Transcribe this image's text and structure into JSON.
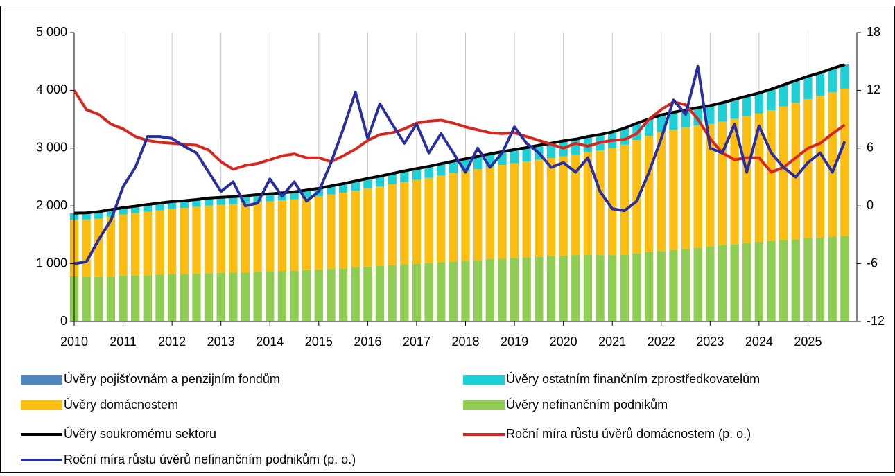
{
  "chart_data": {
    "type": "combo",
    "x": [
      2010,
      2010.25,
      2010.5,
      2010.75,
      2011,
      2011.25,
      2011.5,
      2011.75,
      2012,
      2012.25,
      2012.5,
      2012.75,
      2013,
      2013.25,
      2013.5,
      2013.75,
      2014,
      2014.25,
      2014.5,
      2014.75,
      2015,
      2015.25,
      2015.5,
      2015.75,
      2016,
      2016.25,
      2016.5,
      2016.75,
      2017,
      2017.25,
      2017.5,
      2017.75,
      2018,
      2018.25,
      2018.5,
      2018.75,
      2019,
      2019.25,
      2019.5,
      2019.75,
      2020,
      2020.25,
      2020.5,
      2020.75,
      2021,
      2021.25,
      2021.5,
      2021.75,
      2022,
      2022.25,
      2022.5,
      2022.75,
      2023,
      2023.25,
      2023.5,
      2023.75,
      2024,
      2024.25,
      2024.5,
      2024.75,
      2025,
      2025.25,
      2025.5,
      2025.75
    ],
    "xlim": [
      2010,
      2026
    ],
    "xticks": [
      2010,
      2011,
      2012,
      2013,
      2014,
      2015,
      2016,
      2017,
      2018,
      2019,
      2020,
      2021,
      2022,
      2023,
      2024,
      2025
    ],
    "ylim": [
      0,
      5000
    ],
    "yticks": [
      0,
      {
        "value": 1000,
        "label": "1 000"
      },
      {
        "value": 2000,
        "label": "2 000"
      },
      {
        "value": 3000,
        "label": "3 000"
      },
      {
        "value": 4000,
        "label": "4 000"
      },
      {
        "value": 5000,
        "label": "5 000"
      }
    ],
    "y2lim": [
      -12,
      18
    ],
    "y2ticks": [
      -12,
      -6,
      0,
      6,
      12,
      18
    ],
    "grid": true,
    "series": [
      {
        "name": "Úvěry pojišťovnám a penzijním fondům",
        "type": "bar",
        "color": "#4f86c0",
        "values": [
          15,
          15,
          15,
          15,
          15,
          15,
          15,
          15,
          15,
          15,
          15,
          15,
          15,
          15,
          15,
          15,
          15,
          15,
          15,
          15,
          15,
          15,
          15,
          15,
          15,
          15,
          15,
          15,
          15,
          15,
          15,
          15,
          15,
          15,
          15,
          15,
          15,
          15,
          15,
          15,
          15,
          15,
          15,
          15,
          15,
          15,
          15,
          15,
          15,
          15,
          15,
          15,
          15,
          15,
          15,
          15,
          15,
          15,
          15,
          15,
          15,
          15,
          15,
          15
        ]
      },
      {
        "name": "Úvěry ostatním finančním zprostředkovatelům",
        "type": "bar",
        "color": "#1fcfd6",
        "values": [
          100,
          100,
          105,
          105,
          105,
          105,
          110,
          110,
          110,
          110,
          110,
          115,
          115,
          115,
          115,
          115,
          115,
          115,
          115,
          120,
          120,
          130,
          140,
          150,
          160,
          165,
          170,
          175,
          180,
          185,
          190,
          195,
          200,
          205,
          210,
          215,
          220,
          225,
          235,
          240,
          250,
          250,
          255,
          260,
          265,
          270,
          275,
          280,
          280,
          285,
          290,
          295,
          300,
          310,
          320,
          330,
          340,
          350,
          360,
          370,
          380,
          385,
          395,
          400
        ]
      },
      {
        "name": "Úvěry domácnostem",
        "type": "bar",
        "color": "#fbbd0f",
        "values": [
          980,
          990,
          1010,
          1040,
          1060,
          1080,
          1100,
          1115,
          1130,
          1140,
          1155,
          1170,
          1180,
          1185,
          1195,
          1205,
          1210,
          1220,
          1235,
          1250,
          1270,
          1290,
          1310,
          1330,
          1350,
          1375,
          1400,
          1425,
          1450,
          1475,
          1500,
          1525,
          1550,
          1570,
          1595,
          1620,
          1640,
          1660,
          1680,
          1700,
          1720,
          1740,
          1770,
          1810,
          1850,
          1900,
          1960,
          2010,
          2060,
          2080,
          2095,
          2110,
          2120,
          2140,
          2170,
          2195,
          2220,
          2260,
          2310,
          2360,
          2410,
          2450,
          2500,
          2550
        ]
      },
      {
        "name": "Úvěry nefinančním podnikům",
        "type": "bar",
        "color": "#8fce52",
        "values": [
          780,
          775,
          770,
          775,
          790,
          795,
          800,
          810,
          820,
          825,
          830,
          835,
          840,
          845,
          850,
          860,
          870,
          875,
          880,
          890,
          900,
          910,
          920,
          935,
          950,
          960,
          975,
          990,
          1000,
          1010,
          1025,
          1040,
          1050,
          1065,
          1080,
          1090,
          1100,
          1110,
          1120,
          1130,
          1140,
          1150,
          1160,
          1150,
          1150,
          1160,
          1180,
          1200,
          1220,
          1240,
          1260,
          1280,
          1300,
          1320,
          1340,
          1360,
          1380,
          1395,
          1410,
          1425,
          1440,
          1455,
          1470,
          1480
        ]
      },
      {
        "name": "Úvěry soukromému sektoru",
        "type": "line",
        "color": "#000000",
        "values": [
          1875,
          1880,
          1900,
          1935,
          1970,
          1995,
          2025,
          2050,
          2075,
          2090,
          2110,
          2135,
          2150,
          2160,
          2175,
          2195,
          2210,
          2225,
          2245,
          2275,
          2305,
          2345,
          2385,
          2430,
          2475,
          2515,
          2560,
          2605,
          2645,
          2685,
          2730,
          2775,
          2815,
          2855,
          2900,
          2940,
          2975,
          3010,
          3050,
          3085,
          3125,
          3155,
          3200,
          3235,
          3280,
          3345,
          3430,
          3505,
          3575,
          3620,
          3660,
          3700,
          3735,
          3785,
          3845,
          3900,
          3955,
          4020,
          4095,
          4170,
          4245,
          4305,
          4380,
          4445
        ]
      },
      {
        "name": "Roční míra růstu úvěrů domácnostem (p. o.)",
        "type": "line",
        "axis": "y2",
        "color": "#d9261c",
        "values": [
          12,
          10,
          9.5,
          8.5,
          8,
          7.2,
          6.8,
          6.6,
          6.5,
          6.4,
          6.3,
          5.8,
          4.6,
          3.8,
          4.2,
          4.4,
          4.8,
          5.2,
          5.4,
          5,
          5,
          4.6,
          5.2,
          5.9,
          6.8,
          7.4,
          7.6,
          8,
          8.6,
          8.8,
          8.9,
          8.6,
          8.2,
          7.9,
          7.6,
          7.5,
          7.6,
          7.2,
          6.8,
          6.4,
          6,
          6.5,
          6.2,
          6.6,
          6.8,
          6.9,
          7.5,
          9,
          10,
          10.8,
          10.5,
          9,
          7,
          5.5,
          4.8,
          5,
          5,
          3.5,
          4,
          5,
          6,
          6.5,
          7.5,
          8.4
        ]
      },
      {
        "name": "Roční míra růstu úvěrů nefinančním podnikům (p. o.)",
        "type": "line",
        "axis": "y2",
        "color": "#2a2fa0",
        "values": [
          -6,
          -5.8,
          -3.5,
          -1.5,
          2,
          4,
          7.2,
          7.2,
          7,
          6.2,
          5.5,
          3.5,
          1.5,
          2.5,
          0,
          0.3,
          2.8,
          1,
          2.5,
          0.5,
          1.5,
          4.5,
          8,
          11.8,
          7,
          10.6,
          8.5,
          6.5,
          8.5,
          5.5,
          7.5,
          5.5,
          3.5,
          6,
          4,
          5.5,
          8.2,
          6.5,
          5.5,
          4,
          4.5,
          3.5,
          5,
          1.5,
          -0.3,
          -0.5,
          0.5,
          3.5,
          7,
          11,
          9.5,
          14.5,
          6,
          5.5,
          8.5,
          3.5,
          8.3,
          5.5,
          4,
          3,
          4.5,
          5.5,
          3.5,
          6.7
        ]
      }
    ]
  }
}
